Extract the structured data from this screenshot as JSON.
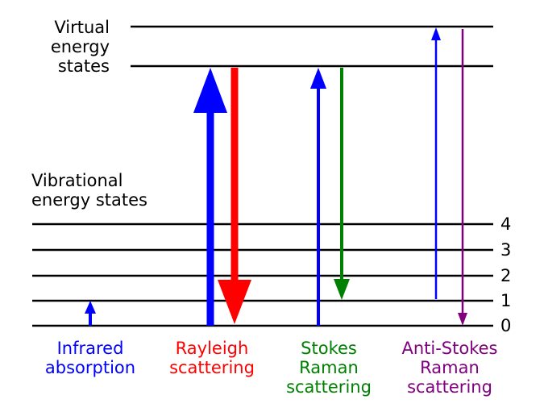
{
  "virtual_label": [
    "Virtual",
    "energy",
    "states"
  ],
  "vibrational_label": [
    "Vibrational",
    "energy states"
  ],
  "levels": [
    "4",
    "3",
    "2",
    "1",
    "0"
  ],
  "processes": [
    {
      "lines": [
        "Infrared",
        "absorption"
      ],
      "color": "#0000ff"
    },
    {
      "lines": [
        "Rayleigh",
        "scattering"
      ],
      "color": "#ff0000"
    },
    {
      "lines": [
        "Stokes",
        "Raman",
        "scattering"
      ],
      "color": "#008000"
    },
    {
      "lines": [
        "Anti-Stokes",
        "Raman",
        "scattering"
      ],
      "color": "#800080"
    }
  ],
  "colors": {
    "line": "#000000",
    "blue": "#0000ff",
    "red": "#ff0000",
    "green": "#008000",
    "purple": "#800080"
  }
}
